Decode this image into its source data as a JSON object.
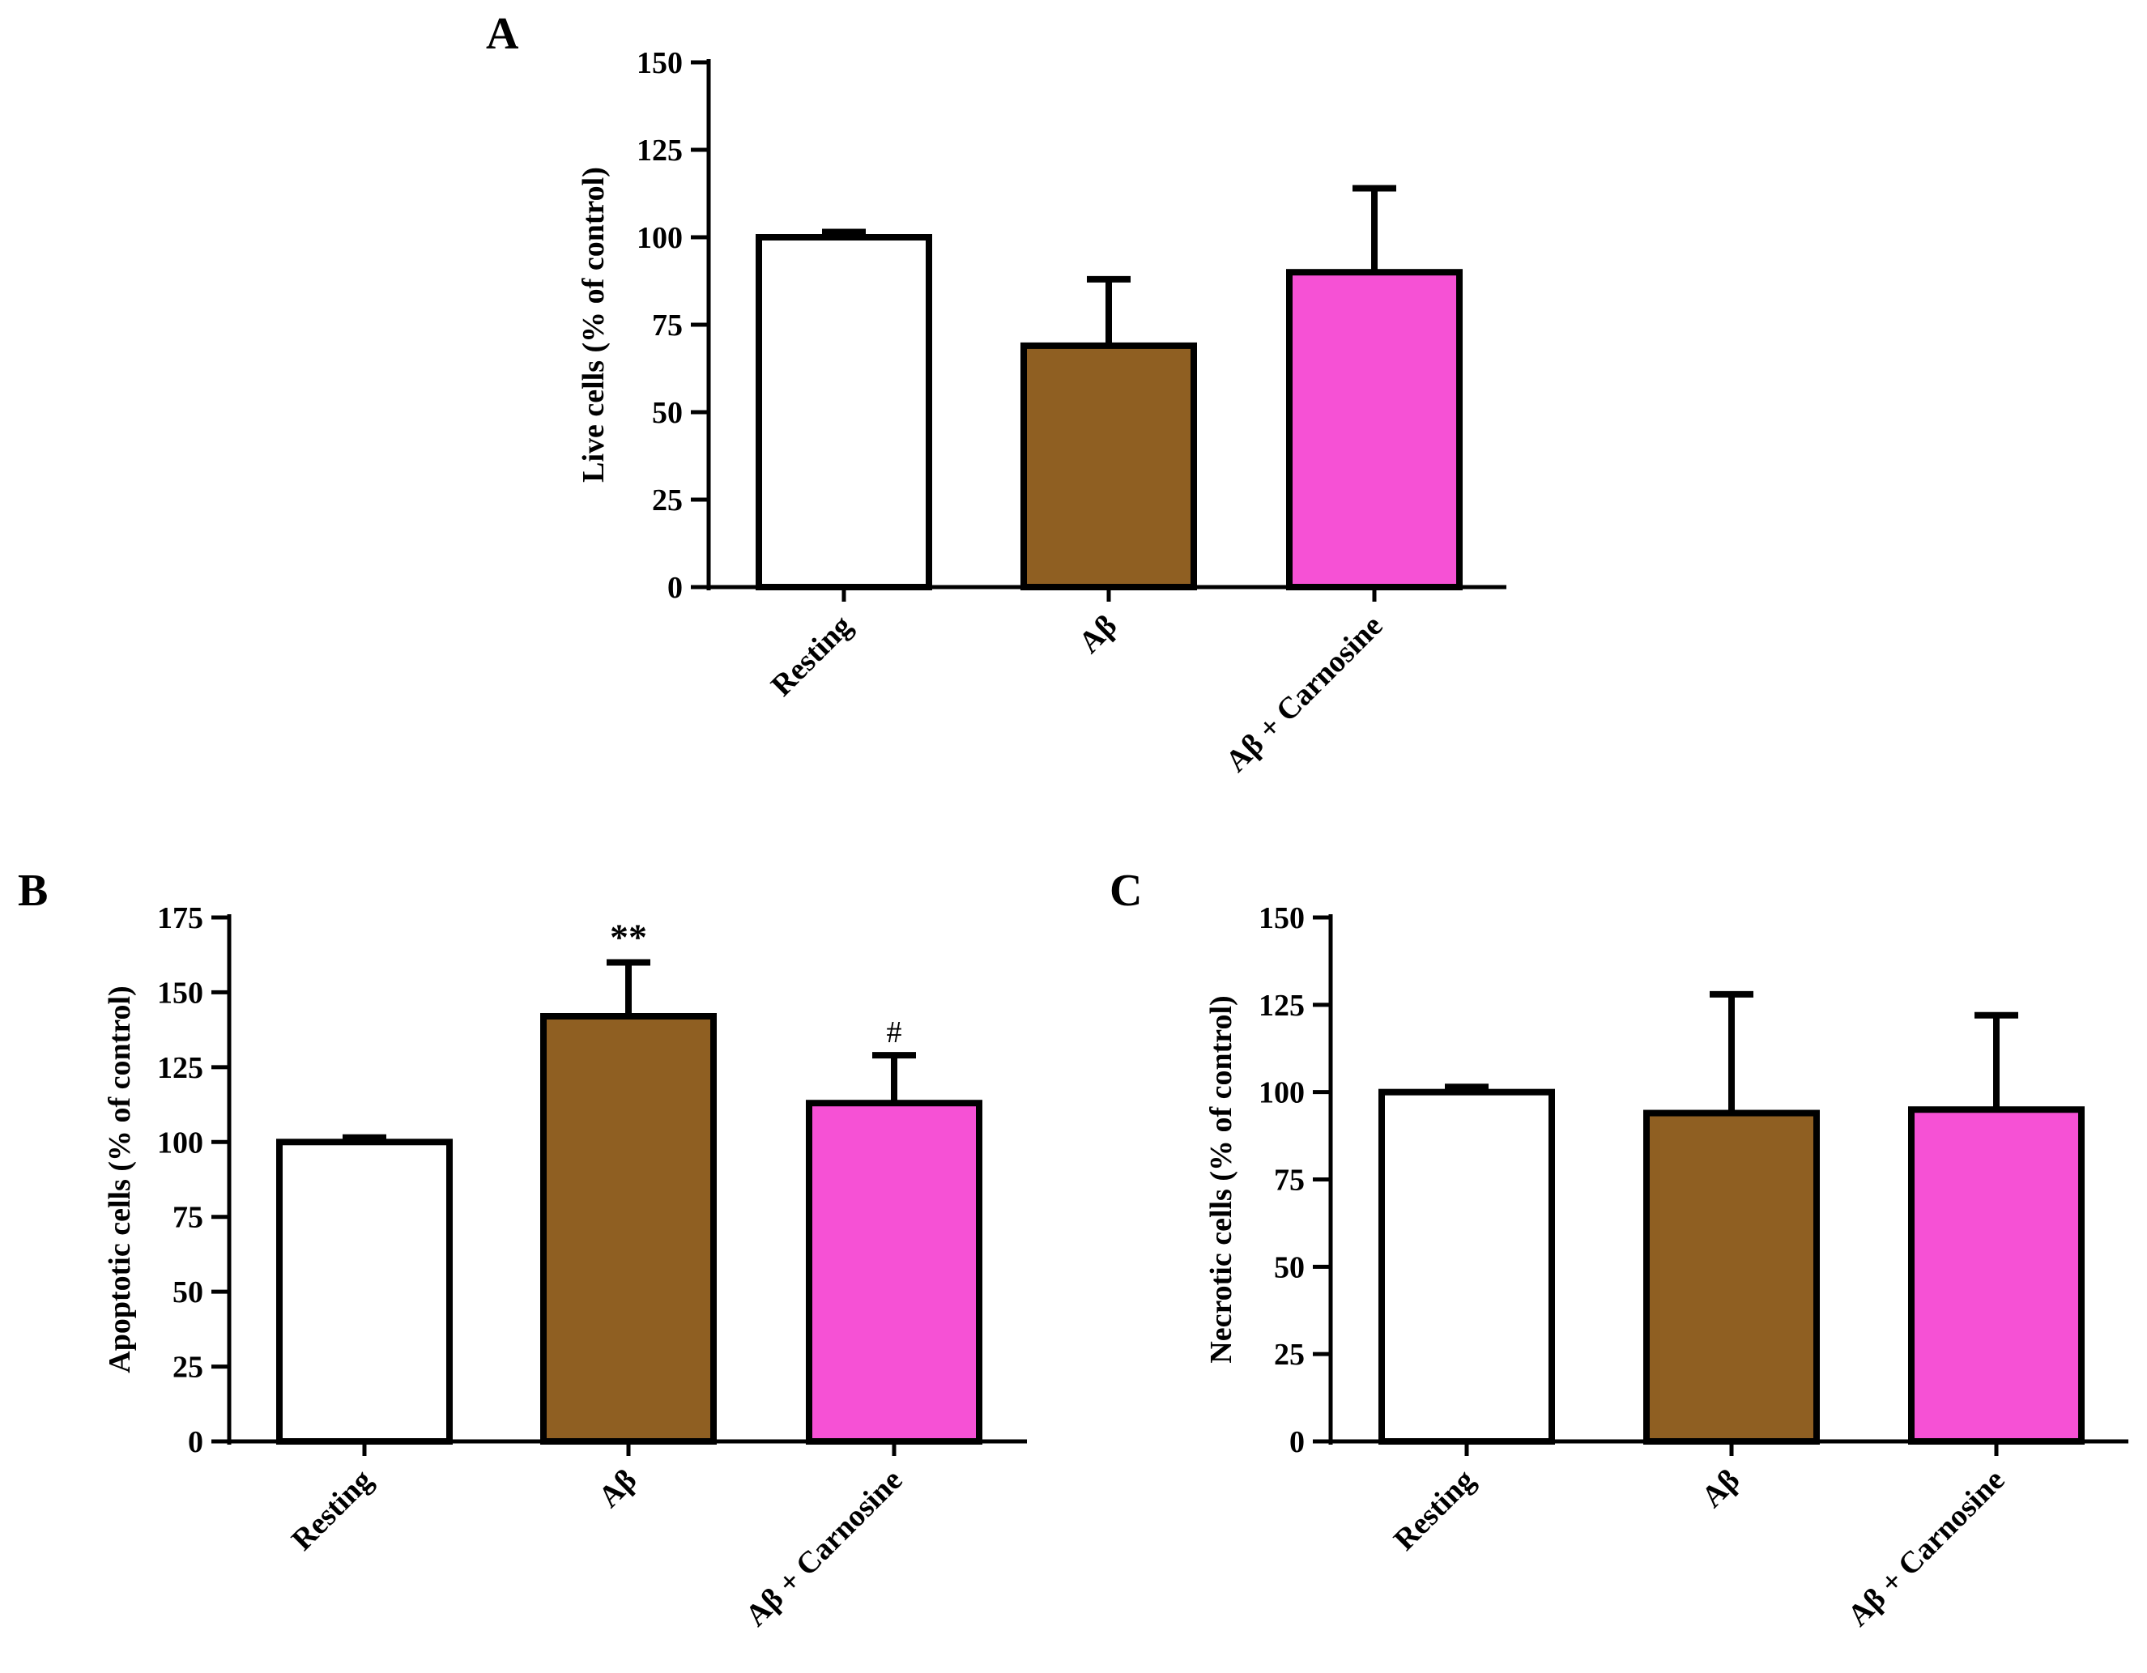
{
  "colors": {
    "resting": "#ffffff",
    "abeta": "#8f5f22",
    "abeta_carnosine": "#f651d5",
    "axis": "#000000"
  },
  "chart_data": [
    {
      "id": "A",
      "panel_label": "A",
      "type": "bar",
      "categories": [
        "Resting",
        "Aβ",
        "Aβ + Carnosine"
      ],
      "values": [
        100,
        69,
        90
      ],
      "errors": [
        1.5,
        19,
        24
      ],
      "annotations": [
        "",
        "",
        ""
      ],
      "ylabel": "Live cells (% of control)",
      "ylim": [
        0,
        150
      ],
      "yticks": [
        0,
        25,
        50,
        75,
        100,
        125,
        150
      ]
    },
    {
      "id": "B",
      "panel_label": "B",
      "type": "bar",
      "categories": [
        "Resting",
        "Aβ",
        "Aβ + Carnosine"
      ],
      "values": [
        100,
        142,
        113
      ],
      "errors": [
        1.5,
        18,
        16
      ],
      "annotations": [
        "",
        "**",
        "#"
      ],
      "ylabel": "Apoptotic cells (% of control)",
      "ylim": [
        0,
        175
      ],
      "yticks": [
        0,
        25,
        50,
        75,
        100,
        125,
        150,
        175
      ]
    },
    {
      "id": "C",
      "panel_label": "C",
      "type": "bar",
      "categories": [
        "Resting",
        "Aβ",
        "Aβ + Carnosine"
      ],
      "values": [
        100,
        94,
        95
      ],
      "errors": [
        1.5,
        34,
        27
      ],
      "annotations": [
        "",
        "",
        ""
      ],
      "ylabel": "Necrotic cells (% of control)",
      "ylim": [
        0,
        150
      ],
      "yticks": [
        0,
        25,
        50,
        75,
        100,
        125,
        150
      ]
    }
  ]
}
